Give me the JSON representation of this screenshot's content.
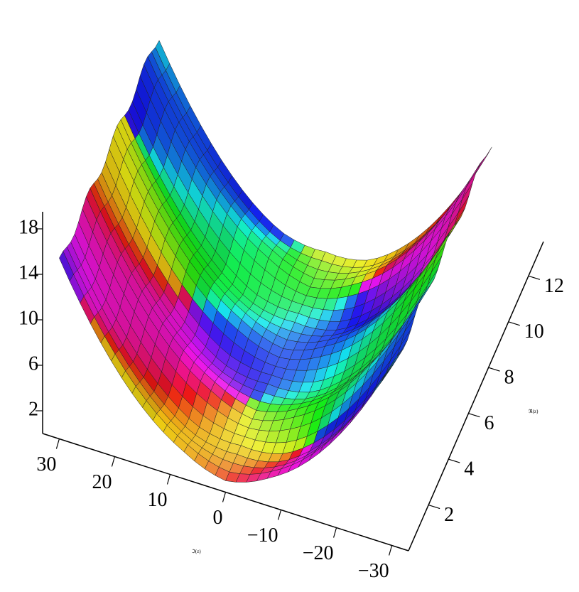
{
  "chart_data": {
    "type": "surface",
    "xlabel": "ℑ(z)",
    "ylabel": "ℜ(z)",
    "xlim": [
      33,
      -33
    ],
    "xticks": [
      30,
      20,
      10,
      0,
      {
        "value": -10,
        "label": "−10"
      },
      {
        "value": -20,
        "label": "−20"
      },
      {
        "value": -30,
        "label": "−30"
      }
    ],
    "ylim": [
      0,
      13.5
    ],
    "yticks": [
      2,
      4,
      6,
      8,
      10,
      12
    ],
    "zlim": [
      0,
      19.5
    ],
    "zticks": [
      2,
      6,
      10,
      14,
      18
    ]
  }
}
